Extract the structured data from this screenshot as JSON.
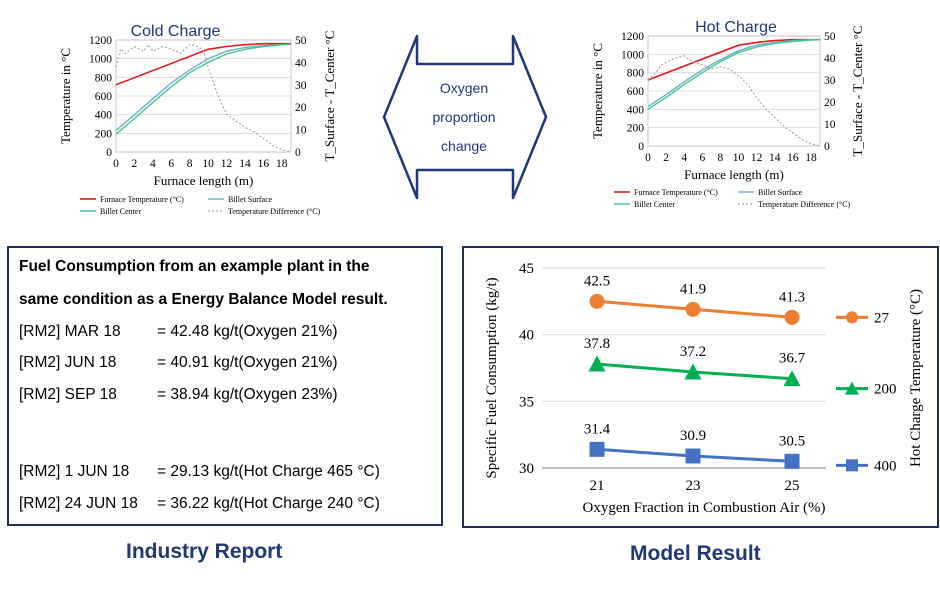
{
  "arrow": {
    "lines": [
      "Oxygen",
      "proportion",
      "change"
    ]
  },
  "report": {
    "heading_lines": [
      "Fuel Consumption from an example plant in the",
      "same condition as a Energy Balance Model result."
    ],
    "rows": [
      {
        "label": "[RM2] MAR 18",
        "value": "= 42.48 kg/t(Oxygen 21%)"
      },
      {
        "label": "[RM2] JUN 18",
        "value": "= 40.91 kg/t(Oxygen 21%)"
      },
      {
        "label": "[RM2] SEP 18",
        "value": "= 38.94 kg/t(Oxygen 23%)"
      },
      {
        "label": "[RM2] 1 JUN 18",
        "value": "= 29.13 kg/t(Hot Charge 465 °C)"
      },
      {
        "label": "[RM2] 24 JUN 18",
        "value": "= 36.22 kg/t(Hot Charge 240 °C)"
      }
    ]
  },
  "captions": {
    "left": "Industry Report",
    "right": "Model Result"
  },
  "colors": {
    "furnace": "#e31a1c",
    "surface": "#6baed6",
    "center": "#41c58a",
    "diff": "#999999",
    "s27": "#ed7d31",
    "s200": "#00b050",
    "s400": "#4472c4",
    "frame": "#1f2d5a",
    "caption": "#1f3878"
  },
  "chart_data": [
    {
      "type": "line",
      "title": "Cold Charge",
      "xlabel": "Furnace length (m)",
      "ylabel": "Temperature in °C",
      "y2label": "T_Surface - T_Center °C",
      "xlim": [
        0,
        19
      ],
      "ylim": [
        0,
        1200
      ],
      "y2lim": [
        0,
        50
      ],
      "xticks": [
        "0",
        "2",
        "4",
        "6",
        "8",
        "10",
        "12",
        "14",
        "16",
        "18"
      ],
      "yticks": [
        "0",
        "200",
        "400",
        "600",
        "800",
        "1000",
        "1200"
      ],
      "y2ticks": [
        "0",
        "10",
        "20",
        "30",
        "40",
        "50"
      ],
      "legend": [
        "Furnace Temperature (°C)",
        "Billet Surface",
        "Billet Center",
        "Temperature Difference  (°C)"
      ],
      "series": [
        {
          "key": "furnace",
          "axis": "left",
          "x": [
            0,
            10,
            12,
            14,
            16,
            18,
            19
          ],
          "y": [
            720,
            1100,
            1130,
            1150,
            1160,
            1160,
            1160
          ]
        },
        {
          "key": "surface",
          "axis": "left",
          "x": [
            0,
            2,
            4,
            6,
            8,
            10,
            12,
            14,
            16,
            18,
            19
          ],
          "y": [
            230,
            400,
            570,
            740,
            880,
            1000,
            1080,
            1120,
            1140,
            1150,
            1155
          ]
        },
        {
          "key": "center",
          "axis": "left",
          "x": [
            0,
            2,
            4,
            6,
            8,
            10,
            12,
            14,
            16,
            18,
            19
          ],
          "y": [
            190,
            360,
            530,
            700,
            850,
            960,
            1050,
            1100,
            1130,
            1150,
            1155
          ]
        },
        {
          "key": "diff",
          "axis": "right",
          "x": [
            0,
            0.5,
            1,
            2,
            3,
            3.5,
            4,
            5,
            6,
            7,
            8,
            9,
            9.5,
            10,
            11,
            12,
            13,
            14,
            15,
            16,
            17,
            18,
            19
          ],
          "y": [
            38,
            46,
            44,
            47,
            45,
            48,
            45,
            47,
            46,
            44,
            48,
            47,
            45,
            38,
            26,
            17,
            14,
            11,
            9,
            6,
            3,
            1,
            0
          ]
        }
      ]
    },
    {
      "type": "line",
      "title": "Hot Charge",
      "xlabel": "Furnace length (m)",
      "ylabel": "Temperature in °C",
      "y2label": "T_Surface - T_Center °C",
      "xlim": [
        0,
        19
      ],
      "ylim": [
        0,
        1200
      ],
      "y2lim": [
        0,
        50
      ],
      "xticks": [
        "0",
        "2",
        "4",
        "6",
        "8",
        "10",
        "12",
        "14",
        "16",
        "18"
      ],
      "yticks": [
        "0",
        "200",
        "400",
        "600",
        "800",
        "1000",
        "1200"
      ],
      "y2ticks": [
        "0",
        "10",
        "20",
        "30",
        "40",
        "50"
      ],
      "legend": [
        "Furnace Temperature (°C)",
        "Billet Surface",
        "Billet Center",
        "Temperature Difference  (°C)"
      ],
      "series": [
        {
          "key": "furnace",
          "axis": "left",
          "x": [
            0,
            10,
            12,
            14,
            16,
            18,
            19
          ],
          "y": [
            720,
            1100,
            1130,
            1150,
            1160,
            1160,
            1160
          ]
        },
        {
          "key": "surface",
          "axis": "left",
          "x": [
            0,
            2,
            4,
            6,
            8,
            10,
            12,
            14,
            16,
            18,
            19
          ],
          "y": [
            430,
            560,
            700,
            830,
            940,
            1040,
            1100,
            1130,
            1150,
            1160,
            1160
          ]
        },
        {
          "key": "center",
          "axis": "left",
          "x": [
            0,
            2,
            4,
            6,
            8,
            10,
            12,
            14,
            16,
            18,
            19
          ],
          "y": [
            400,
            530,
            670,
            800,
            920,
            1020,
            1080,
            1120,
            1140,
            1155,
            1160
          ]
        },
        {
          "key": "diff",
          "axis": "right",
          "x": [
            0,
            1,
            1.5,
            2,
            3,
            4,
            5,
            6,
            7,
            8,
            9,
            10,
            11,
            12,
            13,
            14,
            15,
            16,
            17,
            18,
            19
          ],
          "y": [
            30,
            34,
            37,
            38,
            40,
            41,
            38,
            37,
            35,
            36,
            35,
            32,
            28,
            22,
            17,
            13,
            9,
            6,
            3,
            1,
            0
          ]
        }
      ]
    },
    {
      "type": "line",
      "title": "",
      "xlabel": "Oxygen Fraction in Combustion Air (%)",
      "ylabel": "Specific Fuel Consumption (kg/t)",
      "y2label": "Hot Charge Temperature (°C)",
      "categories": [
        "21",
        "23",
        "25"
      ],
      "ylim": [
        30,
        45
      ],
      "yticks": [
        "30",
        "35",
        "40",
        "45"
      ],
      "series": [
        {
          "name": "27",
          "key": "s27",
          "marker": "circle",
          "values": [
            42.5,
            41.9,
            41.3
          ],
          "labels": [
            "42.5",
            "41.9",
            "41.3"
          ]
        },
        {
          "name": "200",
          "key": "s200",
          "marker": "triangle",
          "values": [
            37.8,
            37.2,
            36.7
          ],
          "labels": [
            "37.8",
            "37.2",
            "36.7"
          ]
        },
        {
          "name": "400",
          "key": "s400",
          "marker": "square",
          "values": [
            31.4,
            30.9,
            30.5
          ],
          "labels": [
            "31.4",
            "30.9",
            "30.5"
          ]
        }
      ]
    }
  ]
}
